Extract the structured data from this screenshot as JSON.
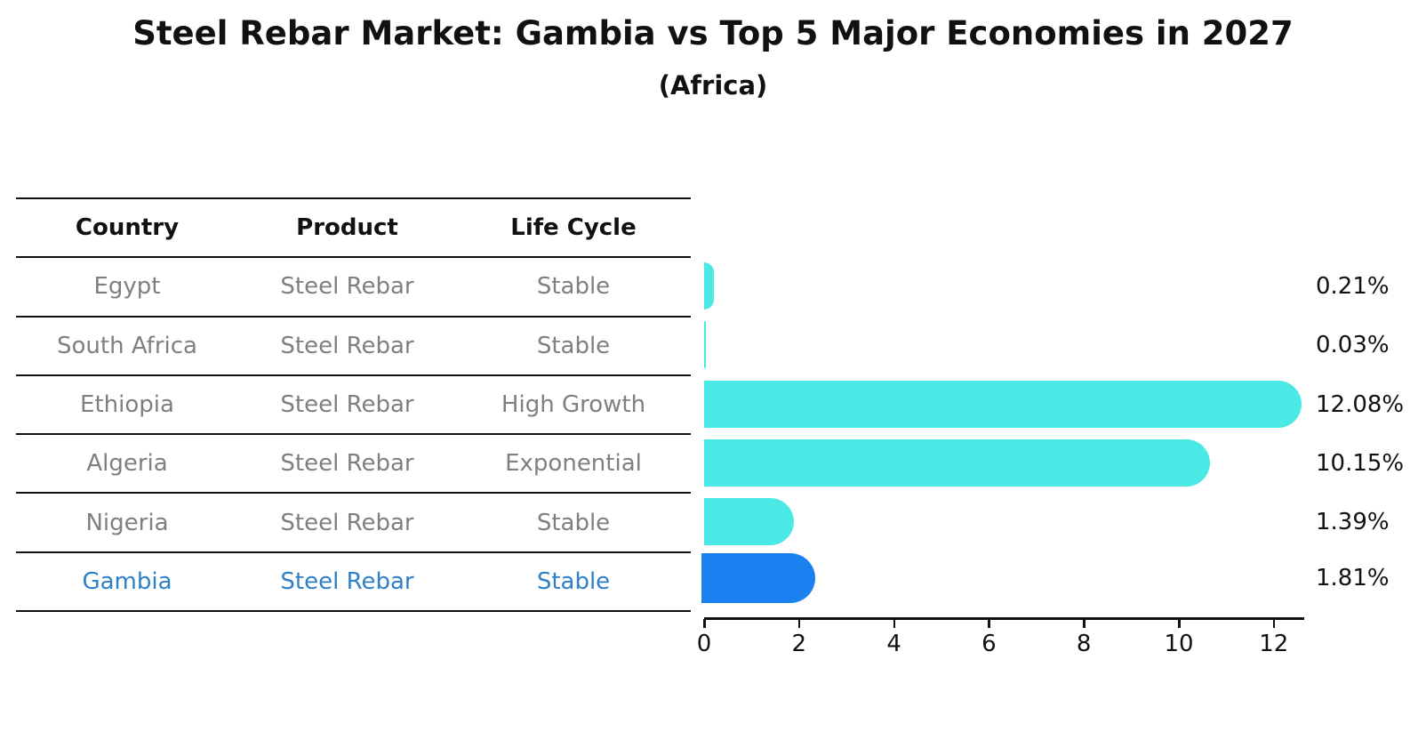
{
  "header": {
    "title": "Steel Rebar Market: Gambia vs Top 5 Major Economies in 2027",
    "subtitle": "(Africa)"
  },
  "table": {
    "headers": [
      "Country",
      "Product",
      "Life Cycle"
    ],
    "rows": [
      {
        "country": "Egypt",
        "product": "Steel Rebar",
        "life_cycle": "Stable",
        "highlight": false
      },
      {
        "country": "South Africa",
        "product": "Steel Rebar",
        "life_cycle": "Stable",
        "highlight": false
      },
      {
        "country": "Ethiopia",
        "product": "Steel Rebar",
        "life_cycle": "High Growth",
        "highlight": false
      },
      {
        "country": "Algeria",
        "product": "Steel Rebar",
        "life_cycle": "Exponential",
        "highlight": false
      },
      {
        "country": "Nigeria",
        "product": "Steel Rebar",
        "life_cycle": "Stable",
        "highlight": false
      },
      {
        "country": "Gambia",
        "product": "Steel Rebar",
        "life_cycle": "Stable",
        "highlight": true
      }
    ]
  },
  "chart_data": {
    "type": "bar",
    "orientation": "horizontal",
    "title": "Steel Rebar Market: Gambia vs Top 5 Major Economies in 2027",
    "subtitle": "(Africa)",
    "categories": [
      "Egypt",
      "South Africa",
      "Ethiopia",
      "Algeria",
      "Nigeria",
      "Gambia"
    ],
    "values": [
      0.21,
      0.03,
      12.08,
      10.15,
      1.39,
      1.81
    ],
    "value_labels": [
      "0.21%",
      "0.03%",
      "12.08%",
      "10.15%",
      "1.39%",
      "1.81%"
    ],
    "unit": "%",
    "xticks": [
      0,
      2,
      4,
      6,
      8,
      10,
      12
    ],
    "xlim": [
      0,
      12.65
    ],
    "grid": false,
    "legend": "none",
    "bar_color": "#4AE9E5",
    "highlight_index": 5,
    "highlight_bar_color": "#1A82F0",
    "highlight_text_color": "#2e80c8"
  }
}
